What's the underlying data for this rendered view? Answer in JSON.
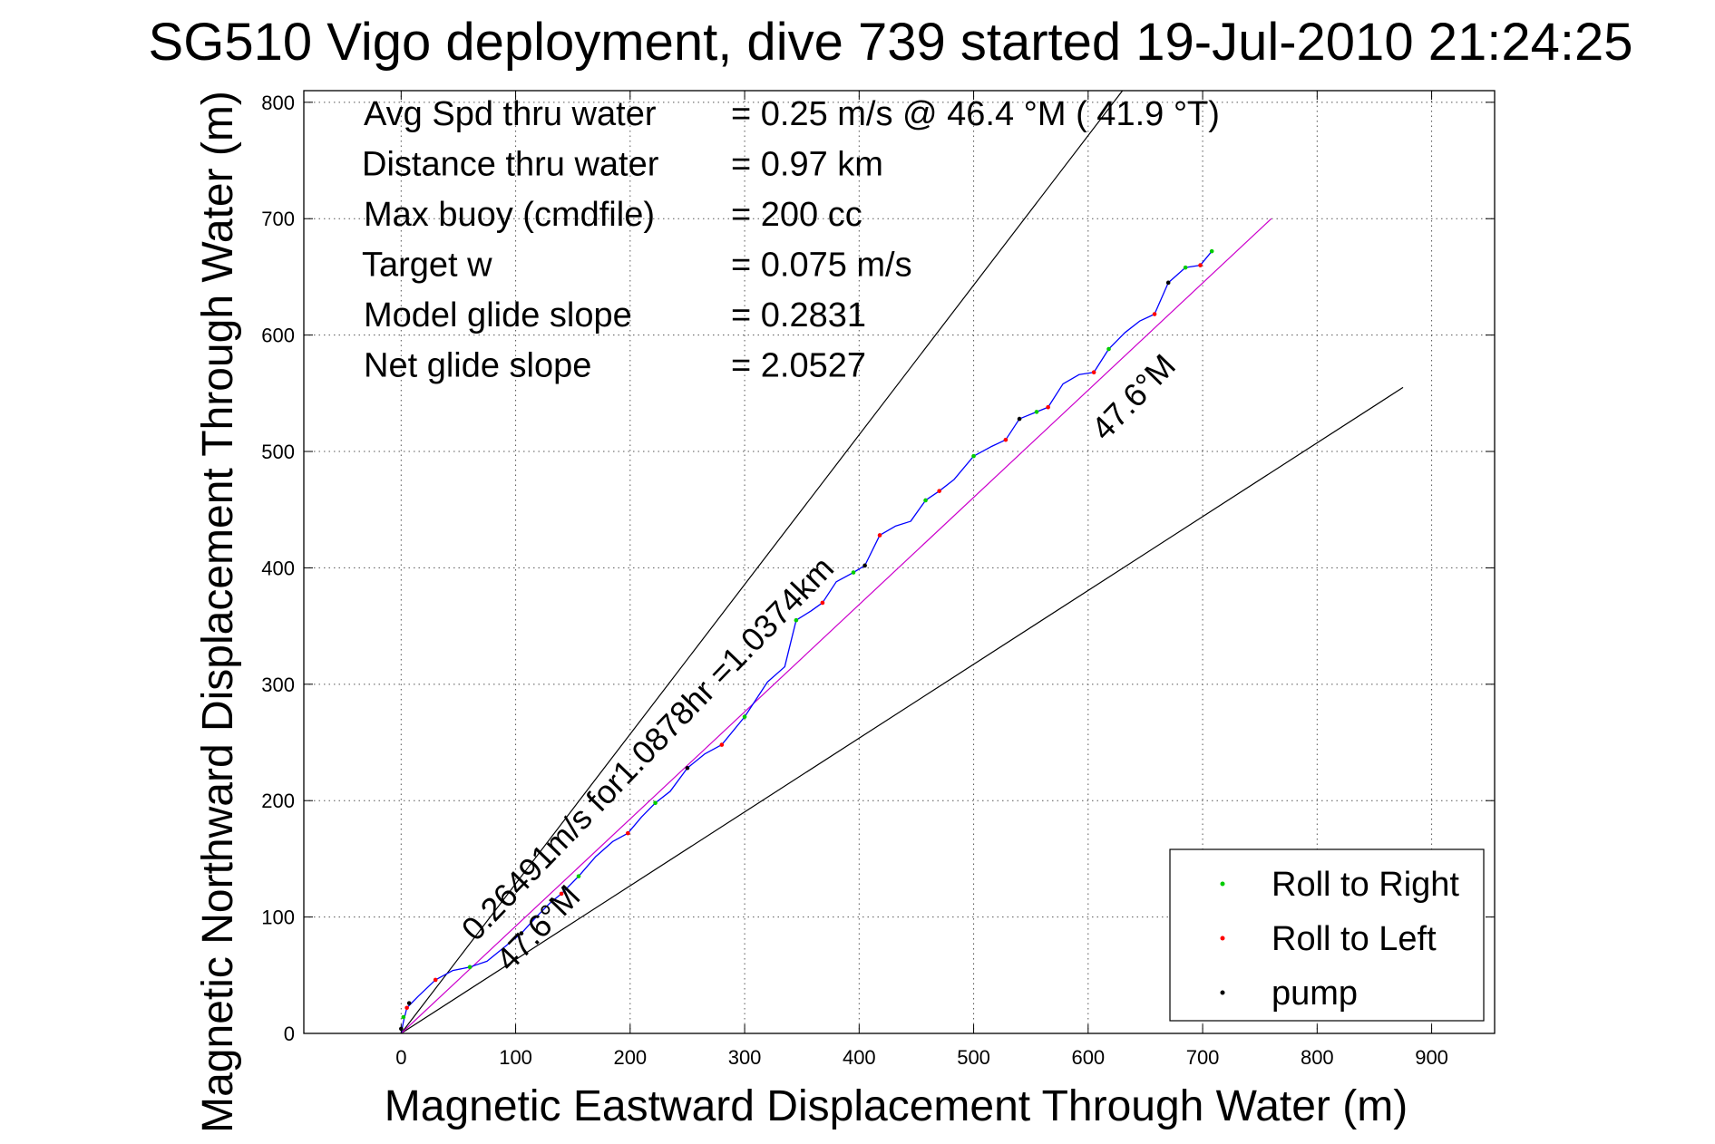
{
  "chart_data": {
    "type": "line",
    "title": "SG510 Vigo deployment, dive 739 started 19-Jul-2010 21:24:25",
    "xlabel": "Magnetic Eastward Displacement Through Water (m)",
    "ylabel": "Magnetic Northward Displacement Through Water (m)",
    "xlim": [
      -85,
      955
    ],
    "ylim": [
      0,
      810
    ],
    "xticks": [
      0,
      100,
      200,
      300,
      400,
      500,
      600,
      700,
      800,
      900
    ],
    "yticks": [
      0,
      100,
      200,
      300,
      400,
      500,
      600,
      700,
      800
    ],
    "grid": true,
    "legend_position": "bottom-right",
    "stats": [
      {
        "label": "Avg Spd thru water",
        "value": "=  0.25 m/s @  46.4 °M ( 41.9 °T)"
      },
      {
        "label": "Distance thru water",
        "value": "=  0.97 km"
      },
      {
        "label": "Max buoy (cmdfile)",
        "value": "= 200 cc"
      },
      {
        "label": "Target w",
        "value": "= 0.075 m/s"
      },
      {
        "label": "Model glide slope",
        "value": "= 0.2831"
      },
      {
        "label": "Net glide slope",
        "value": "= 2.0527"
      }
    ],
    "annotations": [
      {
        "text": "0.26491m/s for1.0878hr =1.0374km",
        "x": 65,
        "y": 78
      },
      {
        "text": "47.6°M",
        "x": 95,
        "y": 52
      },
      {
        "text": "47.6°M",
        "x": 615,
        "y": 508
      }
    ],
    "reference_lines": [
      {
        "name": "course-line-upper",
        "color": "#000000",
        "points": [
          [
            0,
            0
          ],
          [
            630,
            810
          ]
        ]
      },
      {
        "name": "course-line-lower",
        "color": "#000000",
        "points": [
          [
            0,
            0
          ],
          [
            875,
            555
          ]
        ]
      },
      {
        "name": "heading-line",
        "color": "#cc00cc",
        "points": [
          [
            0,
            0
          ],
          [
            760,
            700
          ]
        ]
      }
    ],
    "track": {
      "color": "#0000ff",
      "points": [
        [
          0,
          0
        ],
        [
          2,
          10
        ],
        [
          5,
          22
        ],
        [
          15,
          32
        ],
        [
          30,
          46
        ],
        [
          45,
          54
        ],
        [
          60,
          57
        ],
        [
          75,
          62
        ],
        [
          90,
          74
        ],
        [
          105,
          86
        ],
        [
          118,
          100
        ],
        [
          130,
          112
        ],
        [
          140,
          120
        ],
        [
          155,
          135
        ],
        [
          170,
          152
        ],
        [
          185,
          165
        ],
        [
          198,
          172
        ],
        [
          210,
          186
        ],
        [
          222,
          198
        ],
        [
          235,
          208
        ],
        [
          250,
          228
        ],
        [
          265,
          240
        ],
        [
          280,
          248
        ],
        [
          300,
          272
        ],
        [
          320,
          302
        ],
        [
          335,
          315
        ],
        [
          345,
          355
        ],
        [
          358,
          363
        ],
        [
          368,
          370
        ],
        [
          380,
          388
        ],
        [
          395,
          396
        ],
        [
          405,
          402
        ],
        [
          418,
          428
        ],
        [
          432,
          436
        ],
        [
          445,
          440
        ],
        [
          458,
          458
        ],
        [
          470,
          466
        ],
        [
          483,
          476
        ],
        [
          500,
          496
        ],
        [
          515,
          504
        ],
        [
          528,
          510
        ],
        [
          540,
          528
        ],
        [
          555,
          534
        ],
        [
          565,
          538
        ],
        [
          578,
          558
        ],
        [
          592,
          566
        ],
        [
          605,
          568
        ],
        [
          618,
          588
        ],
        [
          632,
          602
        ],
        [
          645,
          612
        ],
        [
          658,
          618
        ],
        [
          670,
          645
        ],
        [
          685,
          658
        ],
        [
          698,
          660
        ],
        [
          708,
          672
        ]
      ]
    },
    "series": [
      {
        "name": "Roll to Right",
        "color": "#00cc00",
        "points": [
          [
            2,
            14
          ],
          [
            60,
            57
          ],
          [
            155,
            135
          ],
          [
            222,
            198
          ],
          [
            300,
            272
          ],
          [
            345,
            355
          ],
          [
            395,
            396
          ],
          [
            458,
            458
          ],
          [
            500,
            496
          ],
          [
            555,
            534
          ],
          [
            618,
            588
          ],
          [
            685,
            658
          ],
          [
            708,
            672
          ]
        ]
      },
      {
        "name": "Roll to Left",
        "color": "#ff0000",
        "points": [
          [
            5,
            22
          ],
          [
            30,
            46
          ],
          [
            140,
            120
          ],
          [
            198,
            172
          ],
          [
            280,
            248
          ],
          [
            368,
            370
          ],
          [
            418,
            428
          ],
          [
            470,
            466
          ],
          [
            528,
            510
          ],
          [
            565,
            538
          ],
          [
            605,
            568
          ],
          [
            658,
            618
          ],
          [
            698,
            660
          ]
        ]
      },
      {
        "name": "pump",
        "color": "#000000",
        "points": [
          [
            0,
            4
          ],
          [
            7,
            26
          ],
          [
            105,
            86
          ],
          [
            250,
            228
          ],
          [
            405,
            402
          ],
          [
            540,
            528
          ],
          [
            670,
            645
          ]
        ]
      }
    ]
  }
}
